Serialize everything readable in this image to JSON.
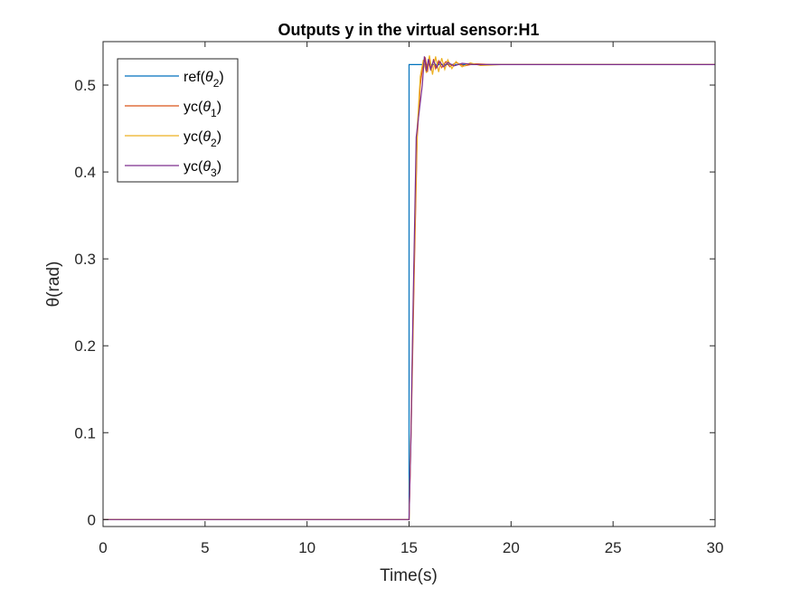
{
  "chart_data": {
    "type": "line",
    "title": "Outputs y in the virtual sensor:H1",
    "xlabel": "Time(s)",
    "ylabel": "θ(rad)",
    "xlim": [
      0,
      30
    ],
    "ylim": [
      -0.008,
      0.55
    ],
    "xticks": [
      0,
      5,
      10,
      15,
      20,
      25,
      30
    ],
    "xtick_labels": [
      "0",
      "5",
      "10",
      "15",
      "20",
      "25",
      "30"
    ],
    "yticks": [
      0,
      0.1,
      0.2,
      0.3,
      0.4,
      0.5
    ],
    "ytick_labels": [
      "0",
      "0.1",
      "0.2",
      "0.3",
      "0.4",
      "0.5"
    ],
    "grid": false,
    "legend_position": "top-left",
    "series": [
      {
        "name": "ref(θ2)",
        "label_base": "ref(",
        "label_sym": "θ",
        "label_sub": "2",
        "label_end": ")",
        "color": "#0072BD",
        "x": [
          0,
          15,
          15,
          30
        ],
        "y": [
          0,
          0,
          0.5236,
          0.5236
        ]
      },
      {
        "name": "yc(θ1)",
        "label_base": "yc(",
        "label_sym": "θ",
        "label_sub": "1",
        "label_end": ")",
        "color": "#D95319",
        "x": [
          0,
          15.0,
          15.1,
          15.25,
          15.4,
          15.55,
          15.7,
          15.8,
          15.9,
          16.0,
          16.1,
          16.2,
          16.3,
          16.45,
          16.6,
          16.8,
          17.0,
          17.3,
          17.7,
          18.2,
          19,
          30
        ],
        "y": [
          0,
          0,
          0.1,
          0.28,
          0.44,
          0.5,
          0.527,
          0.531,
          0.515,
          0.531,
          0.517,
          0.53,
          0.519,
          0.528,
          0.52,
          0.527,
          0.521,
          0.526,
          0.522,
          0.5245,
          0.5236,
          0.5236
        ]
      },
      {
        "name": "yc(θ2)",
        "label_base": "yc(",
        "label_sym": "θ",
        "label_sub": "2",
        "label_end": ")",
        "color": "#EDB120",
        "x": [
          0,
          15.0,
          15.1,
          15.25,
          15.4,
          15.55,
          15.7,
          15.85,
          16.0,
          16.15,
          16.3,
          16.45,
          16.6,
          16.75,
          16.9,
          17.1,
          17.3,
          17.6,
          18.0,
          18.5,
          19.5,
          30
        ],
        "y": [
          0,
          0,
          0.11,
          0.3,
          0.45,
          0.51,
          0.529,
          0.514,
          0.534,
          0.512,
          0.533,
          0.515,
          0.531,
          0.518,
          0.529,
          0.519,
          0.527,
          0.521,
          0.5255,
          0.5225,
          0.5236,
          0.5236
        ]
      },
      {
        "name": "yc(θ3)",
        "label_base": "yc(",
        "label_sym": "θ",
        "label_sub": "3",
        "label_end": ")",
        "color": "#7E2F8E",
        "x": [
          0,
          15.0,
          15.08,
          15.2,
          15.35,
          15.5,
          15.65,
          15.75,
          15.85,
          15.95,
          16.05,
          16.2,
          16.35,
          16.5,
          16.7,
          16.9,
          17.2,
          17.6,
          18.2,
          30
        ],
        "y": [
          0,
          0,
          0.08,
          0.25,
          0.44,
          0.47,
          0.5,
          0.533,
          0.516,
          0.53,
          0.518,
          0.528,
          0.52,
          0.527,
          0.521,
          0.526,
          0.522,
          0.525,
          0.5236,
          0.5236
        ]
      }
    ]
  }
}
